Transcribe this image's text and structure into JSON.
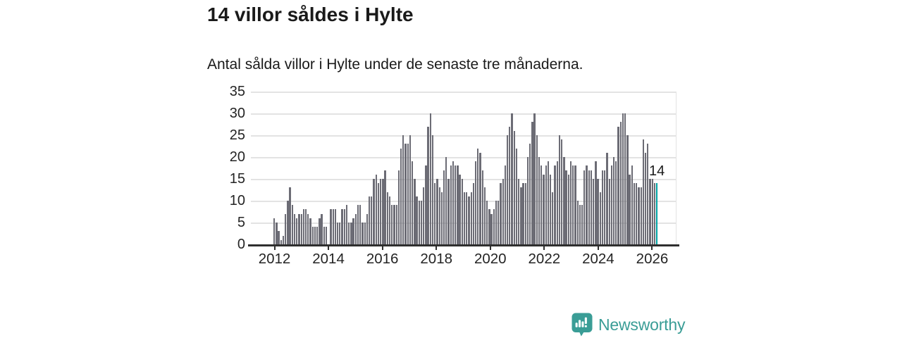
{
  "header": {
    "title": "14 villor såldes i Hylte",
    "subtitle": "Antal sålda villor i Hylte under de senaste tre månaderna."
  },
  "chart_data": {
    "type": "bar",
    "title": "14 villor såldes i Hylte",
    "subtitle": "Antal sålda villor i Hylte under de senaste tre månaderna.",
    "x_start": "2012-01",
    "x_end": "2026-02",
    "frequency": "monthly",
    "values": [
      6,
      5,
      3,
      1,
      2,
      7,
      10,
      13,
      9,
      7,
      6,
      7,
      7,
      8,
      8,
      7,
      6,
      4,
      4,
      4,
      6,
      7,
      4,
      4,
      0,
      8,
      8,
      8,
      5,
      5,
      8,
      8,
      9,
      5,
      5,
      6,
      7,
      9,
      9,
      5,
      5,
      7,
      11,
      11,
      15,
      16,
      14,
      15,
      15,
      17,
      12,
      11,
      9,
      9,
      9,
      17,
      22,
      25,
      23,
      23,
      25,
      19,
      15,
      11,
      10,
      10,
      13,
      18,
      27,
      30,
      25,
      14,
      15,
      13,
      12,
      17,
      20,
      15,
      18,
      19,
      18,
      18,
      16,
      15,
      12,
      12,
      11,
      12,
      14,
      19,
      22,
      21,
      17,
      13,
      10,
      8,
      7,
      8,
      10,
      10,
      14,
      15,
      18,
      25,
      27,
      30,
      26,
      22,
      15,
      13,
      14,
      14,
      20,
      23,
      28,
      30,
      25,
      20,
      18,
      16,
      18,
      19,
      16,
      12,
      18,
      19,
      25,
      24,
      20,
      17,
      16,
      19,
      18,
      18,
      10,
      9,
      9,
      17,
      18,
      17,
      17,
      15,
      19,
      15,
      12,
      17,
      17,
      21,
      15,
      18,
      20,
      19,
      27,
      28,
      30,
      30,
      25,
      16,
      18,
      14,
      14,
      13,
      13,
      24,
      21,
      23,
      15,
      15,
      14,
      14
    ],
    "ylim": [
      0,
      35
    ],
    "yticks": [
      0,
      5,
      10,
      15,
      20,
      25,
      30,
      35
    ],
    "xticks": [
      "2012",
      "2014",
      "2016",
      "2018",
      "2020",
      "2022",
      "2024",
      "2026"
    ],
    "grid": true,
    "legend_position": "none",
    "bar_color": "#6c6c75",
    "highlight": {
      "index": 169,
      "value": 14,
      "label": "14",
      "color": "#00a3a3"
    }
  },
  "branding": {
    "logo_text": "Newsworthy",
    "logo_color": "#3a9d96"
  }
}
